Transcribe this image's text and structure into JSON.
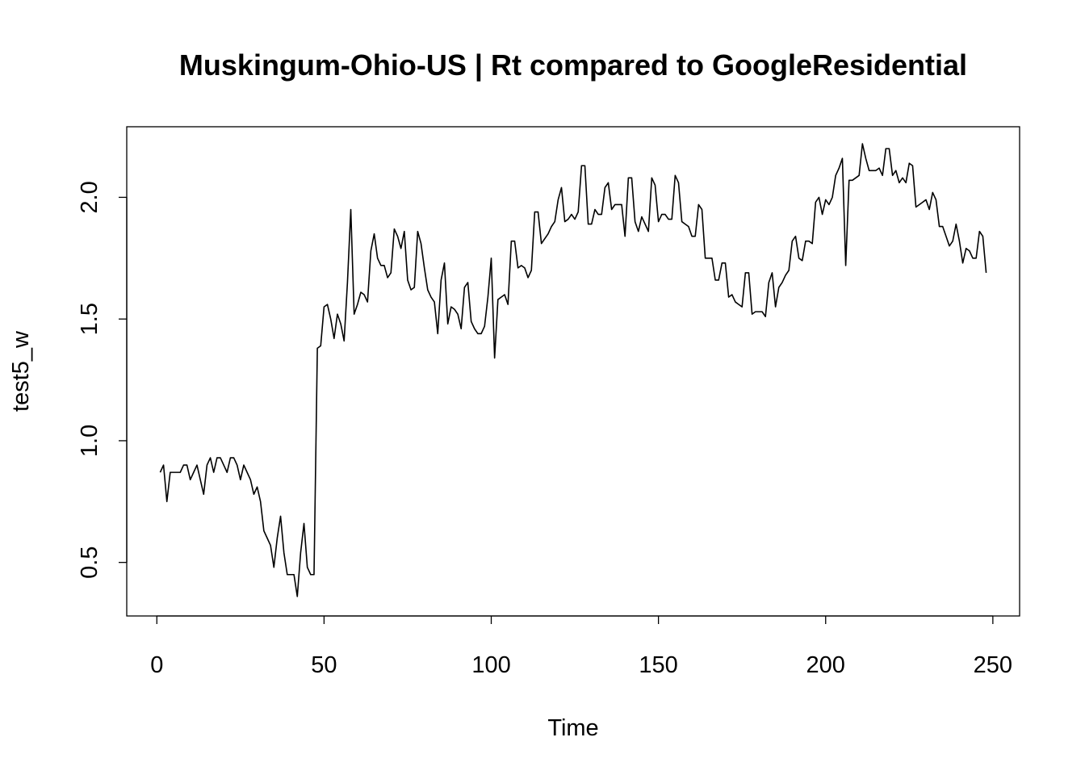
{
  "chart_data": {
    "type": "line",
    "title": "Muskingum-Ohio-US | Rt compared to GoogleResidential",
    "xlabel": "Time",
    "ylabel": "test5_w",
    "xlim": [
      -9,
      258
    ],
    "ylim": [
      0.28,
      2.29
    ],
    "xticks": [
      0,
      50,
      100,
      150,
      200,
      250
    ],
    "yticks": [
      0.5,
      1.0,
      1.5,
      2.0
    ],
    "xtick_labels": [
      "0",
      "50",
      "100",
      "150",
      "200",
      "250"
    ],
    "ytick_labels": [
      "0.5",
      "1.0",
      "1.5",
      "2.0"
    ],
    "grid": false,
    "legend": "none",
    "line_color": "#000000",
    "series": [
      {
        "x_start": 1,
        "values": [
          0.87,
          0.9,
          0.75,
          0.87,
          0.87,
          0.87,
          0.87,
          0.9,
          0.9,
          0.84,
          0.87,
          0.9,
          0.84,
          0.78,
          0.9,
          0.93,
          0.87,
          0.93,
          0.93,
          0.9,
          0.87,
          0.93,
          0.93,
          0.9,
          0.84,
          0.9,
          0.87,
          0.84,
          0.78,
          0.81,
          0.75,
          0.63,
          0.6,
          0.57,
          0.48,
          0.6,
          0.69,
          0.54,
          0.45,
          0.45,
          0.45,
          0.36,
          0.54,
          0.66,
          0.48,
          0.45,
          0.45,
          1.38,
          1.39,
          1.55,
          1.56,
          1.5,
          1.42,
          1.52,
          1.48,
          1.41,
          1.65,
          1.95,
          1.52,
          1.56,
          1.61,
          1.6,
          1.57,
          1.78,
          1.85,
          1.75,
          1.72,
          1.72,
          1.67,
          1.69,
          1.87,
          1.84,
          1.79,
          1.86,
          1.66,
          1.62,
          1.63,
          1.86,
          1.81,
          1.71,
          1.62,
          1.59,
          1.57,
          1.44,
          1.66,
          1.73,
          1.48,
          1.55,
          1.54,
          1.52,
          1.46,
          1.63,
          1.65,
          1.49,
          1.46,
          1.44,
          1.44,
          1.47,
          1.59,
          1.75,
          1.34,
          1.58,
          1.59,
          1.6,
          1.56,
          1.82,
          1.82,
          1.71,
          1.72,
          1.71,
          1.67,
          1.7,
          1.94,
          1.94,
          1.81,
          1.83,
          1.85,
          1.88,
          1.9,
          1.99,
          2.04,
          1.9,
          1.91,
          1.93,
          1.91,
          1.94,
          2.13,
          2.13,
          1.89,
          1.89,
          1.95,
          1.93,
          1.93,
          2.04,
          2.06,
          1.95,
          1.97,
          1.97,
          1.97,
          1.84,
          2.08,
          2.08,
          1.9,
          1.86,
          1.92,
          1.89,
          1.86,
          2.08,
          2.05,
          1.9,
          1.93,
          1.93,
          1.91,
          1.91,
          2.09,
          2.06,
          1.9,
          1.89,
          1.88,
          1.84,
          1.84,
          1.97,
          1.95,
          1.75,
          1.75,
          1.75,
          1.66,
          1.66,
          1.73,
          1.73,
          1.59,
          1.6,
          1.57,
          1.56,
          1.55,
          1.69,
          1.69,
          1.52,
          1.53,
          1.53,
          1.53,
          1.51,
          1.65,
          1.69,
          1.55,
          1.63,
          1.65,
          1.68,
          1.7,
          1.82,
          1.84,
          1.75,
          1.74,
          1.82,
          1.82,
          1.81,
          1.98,
          2.0,
          1.93,
          1.99,
          1.97,
          2.0,
          2.09,
          2.12,
          2.16,
          1.72,
          2.07,
          2.07,
          2.08,
          2.09,
          2.22,
          2.16,
          2.11,
          2.11,
          2.11,
          2.12,
          2.09,
          2.2,
          2.2,
          2.09,
          2.11,
          2.06,
          2.08,
          2.06,
          2.14,
          2.13,
          1.96,
          1.97,
          1.98,
          1.99,
          1.95,
          2.02,
          1.99,
          1.88,
          1.88,
          1.84,
          1.8,
          1.82,
          1.89,
          1.82,
          1.73,
          1.79,
          1.78,
          1.75,
          1.75,
          1.86,
          1.84,
          1.69
        ]
      }
    ]
  }
}
